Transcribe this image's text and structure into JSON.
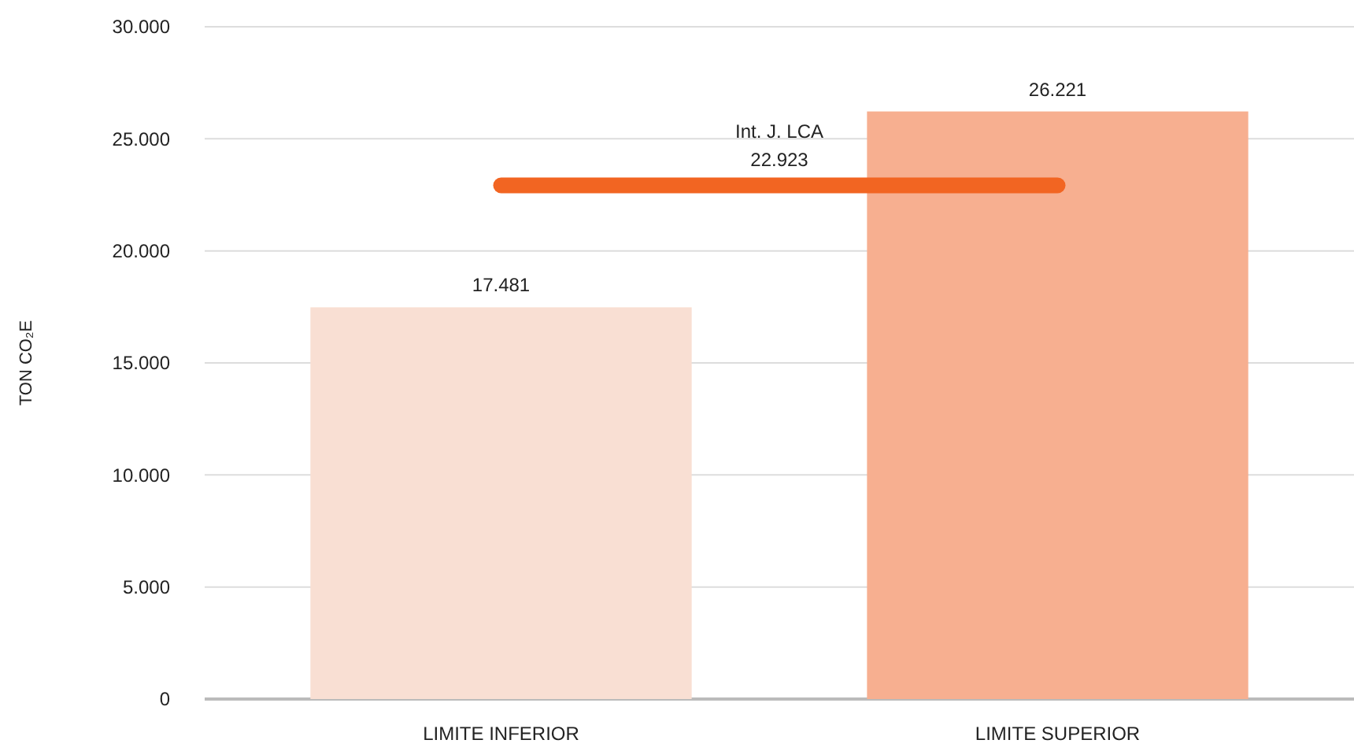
{
  "chart_data": {
    "type": "bar",
    "ylabel": "TON CO₂E",
    "categories": [
      "LIMITE INFERIOR",
      "LIMITE SUPERIOR"
    ],
    "values": [
      17481,
      26221
    ],
    "colors": [
      "#f9dfd3",
      "#f7af90"
    ],
    "value_labels": [
      "17.481",
      "26.221"
    ],
    "ylim": [
      0,
      30000
    ],
    "yticks": [
      {
        "value": 0,
        "label": "0"
      },
      {
        "value": 5000,
        "label": "5.000"
      },
      {
        "value": 10000,
        "label": "10.000"
      },
      {
        "value": 15000,
        "label": "15.000"
      },
      {
        "value": 20000,
        "label": "20.000"
      },
      {
        "value": 25000,
        "label": "25.000"
      },
      {
        "value": 30000,
        "label": "30.000"
      }
    ],
    "grid": "y",
    "ref_lines": [
      {
        "axis": "y",
        "value": 22923,
        "label": "Int. J. LCA\n22.923",
        "color": "#f26522"
      }
    ]
  }
}
